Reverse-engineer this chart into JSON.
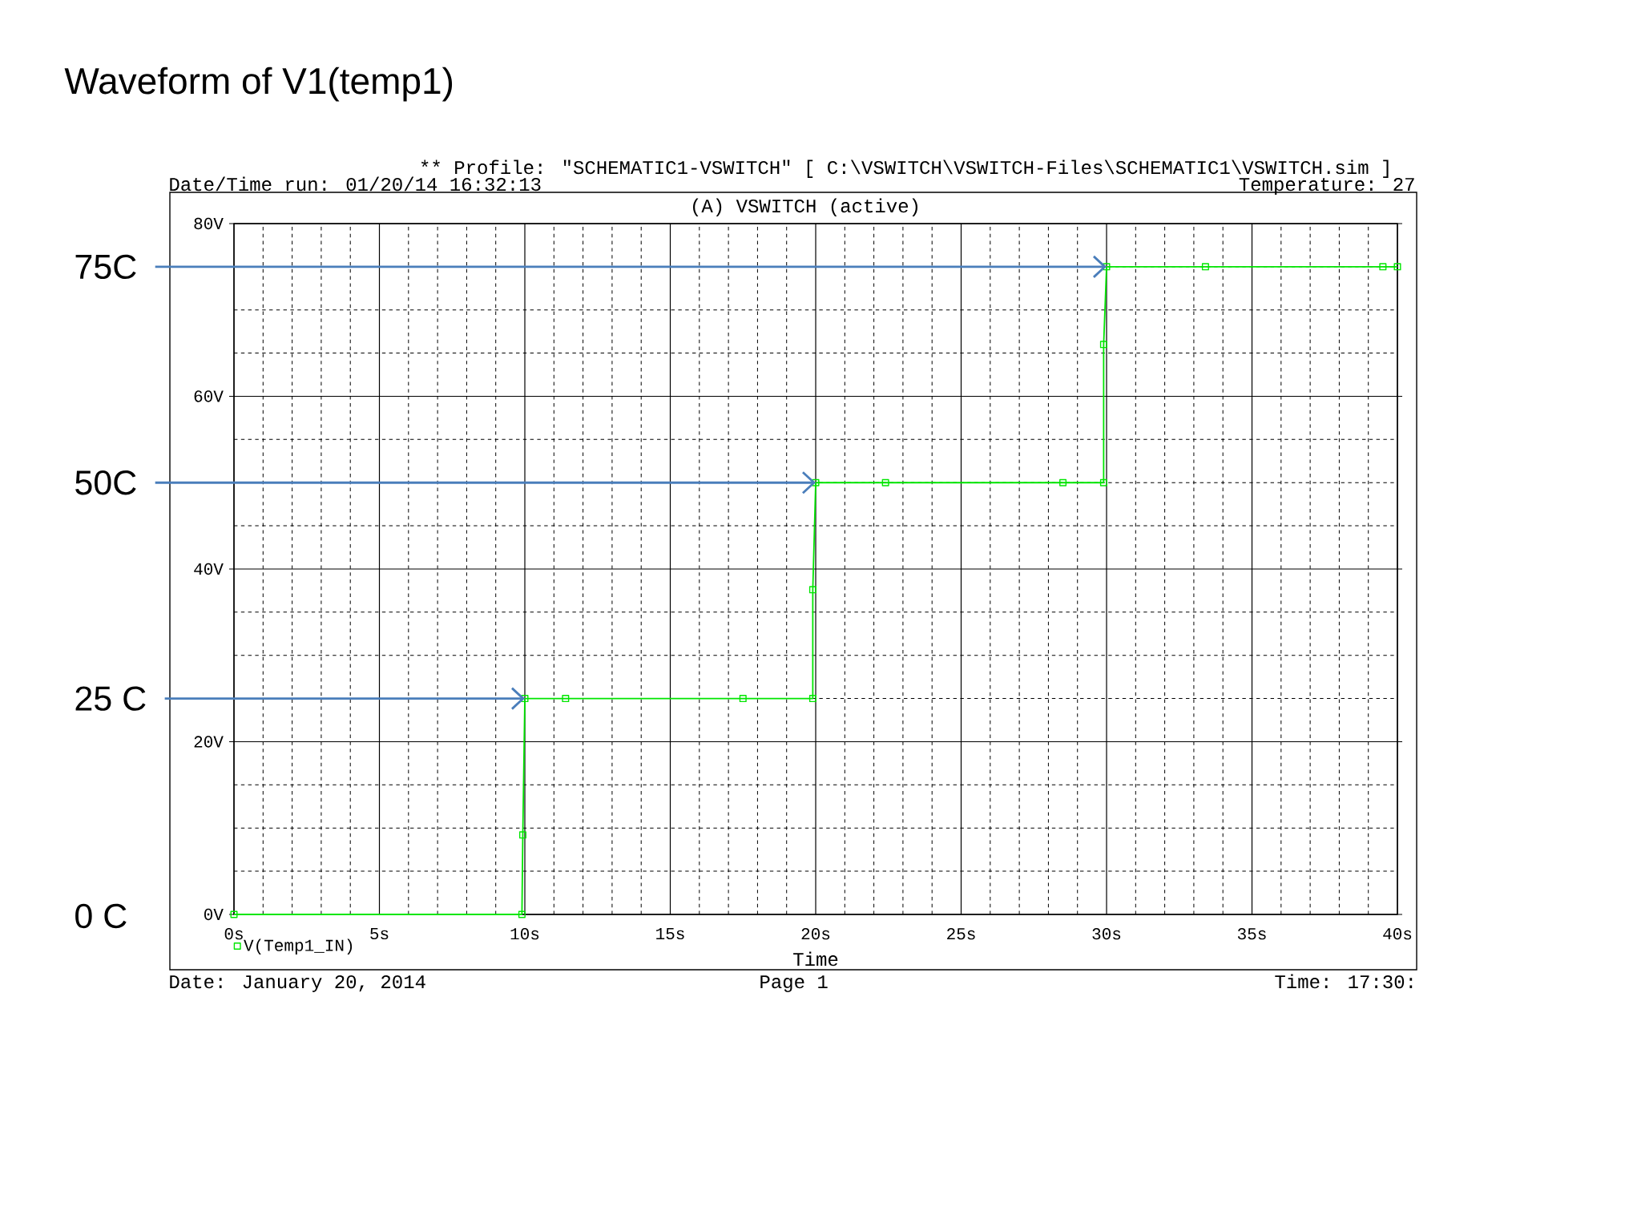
{
  "chart_data": {
    "type": "line",
    "title": "Waveform of V1(temp1)",
    "subtitle": "(A) VSWITCH (active)",
    "xlabel": "Time",
    "x": [
      0,
      9.9,
      9.93,
      10,
      11.4,
      17.5,
      19.9,
      19.9,
      20,
      22.4,
      28.5,
      29.9,
      29.9,
      30,
      33.4,
      39.5,
      40
    ],
    "series": [
      {
        "name": "V(Temp1_IN)",
        "color": "#00e600",
        "values": [
          0,
          0,
          9.2,
          25,
          25,
          25,
          25,
          37.6,
          50,
          50,
          50,
          50,
          66,
          75,
          75,
          75,
          75
        ]
      }
    ],
    "xlim": [
      0,
      40
    ],
    "ylim": [
      0,
      80
    ],
    "xticks": [
      {
        "value": 0,
        "label": "0s"
      },
      {
        "value": 5,
        "label": "5s"
      },
      {
        "value": 10,
        "label": "10s"
      },
      {
        "value": 15,
        "label": "15s"
      },
      {
        "value": 20,
        "label": "20s"
      },
      {
        "value": 25,
        "label": "25s"
      },
      {
        "value": 30,
        "label": "30s"
      },
      {
        "value": 35,
        "label": "35s"
      },
      {
        "value": 40,
        "label": "40s"
      }
    ],
    "yticks": [
      {
        "value": 0,
        "label": "0V"
      },
      {
        "value": 20,
        "label": "20V"
      },
      {
        "value": 40,
        "label": "40V"
      },
      {
        "value": 60,
        "label": "60V"
      },
      {
        "value": 80,
        "label": "80V"
      }
    ],
    "grid": true,
    "legend": "bottom left",
    "marker": "square",
    "annotations": [
      "** Profile: \"SCHEMATIC1-VSWITCH\"  [ C:\\VSWITCH\\VSWITCH-Files\\SCHEMATIC1\\VSWITCH.sim ]",
      "Date/Time run: 01/20/14 16:32:13",
      "Temperature: 27",
      "Date: January 20, 2014",
      "Page 1",
      "Time: 17:30:",
      "0 C",
      {
        "text": "75C",
        "x": 30,
        "y": 75
      },
      {
        "text": "50C",
        "x": 20,
        "y": 50
      },
      {
        "text": "25 C",
        "x": 10,
        "y": 25
      }
    ]
  }
}
